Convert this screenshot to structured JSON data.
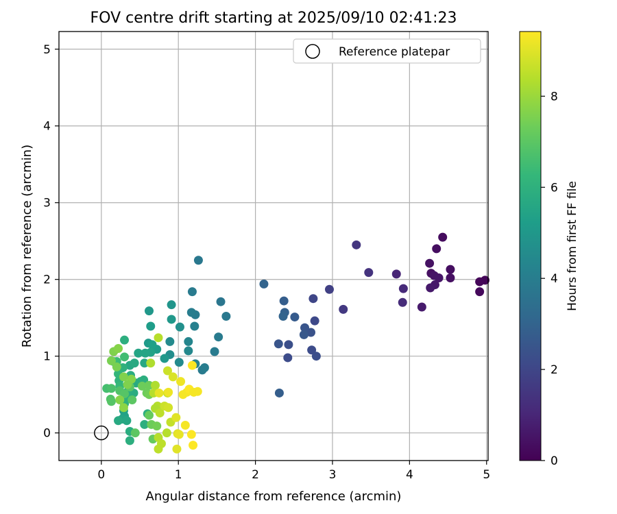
{
  "chart_data": {
    "type": "scatter",
    "title": "FOV centre drift starting at 2025/09/10 02:41:23",
    "xlabel": "Angular distance from reference (arcmin)",
    "ylabel": "Rotation from reference (arcmin)",
    "xlim": [
      -0.55,
      5.02
    ],
    "ylim": [
      -0.36,
      5.23
    ],
    "xticks": [
      0,
      1,
      2,
      3,
      4,
      5
    ],
    "yticks": [
      0,
      1,
      2,
      3,
      4,
      5
    ],
    "grid": true,
    "legend": {
      "placement": "top-right",
      "entries": [
        "Reference platepar"
      ]
    },
    "reference_point": {
      "x": 0,
      "y": 0
    },
    "colorbar": {
      "label": "Hours from first FF file",
      "min": 0,
      "max": 9.42,
      "ticks": [
        0,
        2,
        4,
        6,
        8
      ],
      "colormap": "viridis"
    },
    "points": [
      {
        "x": 4.98,
        "y": 1.99,
        "h": 0.1
      },
      {
        "x": 4.91,
        "y": 1.97,
        "h": 0.15
      },
      {
        "x": 4.91,
        "y": 1.84,
        "h": 0.2
      },
      {
        "x": 4.43,
        "y": 2.55,
        "h": 0.3
      },
      {
        "x": 4.35,
        "y": 2.4,
        "h": 0.35
      },
      {
        "x": 4.26,
        "y": 2.21,
        "h": 0.45
      },
      {
        "x": 4.28,
        "y": 2.08,
        "h": 0.4
      },
      {
        "x": 4.32,
        "y": 2.05,
        "h": 0.5
      },
      {
        "x": 4.38,
        "y": 2.02,
        "h": 0.55
      },
      {
        "x": 4.53,
        "y": 2.13,
        "h": 0.35
      },
      {
        "x": 4.53,
        "y": 2.02,
        "h": 0.4
      },
      {
        "x": 4.33,
        "y": 1.93,
        "h": 0.6
      },
      {
        "x": 4.27,
        "y": 1.89,
        "h": 0.65
      },
      {
        "x": 4.16,
        "y": 1.64,
        "h": 0.7
      },
      {
        "x": 3.92,
        "y": 1.88,
        "h": 1.1
      },
      {
        "x": 3.91,
        "y": 1.7,
        "h": 1.2
      },
      {
        "x": 3.83,
        "y": 2.07,
        "h": 1.0
      },
      {
        "x": 3.47,
        "y": 2.09,
        "h": 1.4
      },
      {
        "x": 3.31,
        "y": 2.45,
        "h": 1.5
      },
      {
        "x": 3.14,
        "y": 1.61,
        "h": 1.6
      },
      {
        "x": 2.96,
        "y": 1.87,
        "h": 1.8
      },
      {
        "x": 2.75,
        "y": 1.75,
        "h": 2.0
      },
      {
        "x": 2.77,
        "y": 1.46,
        "h": 2.1
      },
      {
        "x": 2.73,
        "y": 1.08,
        "h": 2.2
      },
      {
        "x": 2.79,
        "y": 1.0,
        "h": 2.25
      },
      {
        "x": 2.72,
        "y": 1.31,
        "h": 2.4
      },
      {
        "x": 2.64,
        "y": 1.37,
        "h": 2.5
      },
      {
        "x": 2.63,
        "y": 1.28,
        "h": 2.6
      },
      {
        "x": 2.51,
        "y": 1.51,
        "h": 2.7
      },
      {
        "x": 2.43,
        "y": 1.15,
        "h": 2.3
      },
      {
        "x": 2.42,
        "y": 0.98,
        "h": 2.2
      },
      {
        "x": 2.3,
        "y": 1.16,
        "h": 2.5
      },
      {
        "x": 2.37,
        "y": 1.72,
        "h": 2.8
      },
      {
        "x": 2.38,
        "y": 1.57,
        "h": 2.9
      },
      {
        "x": 2.36,
        "y": 1.52,
        "h": 3.0
      },
      {
        "x": 2.31,
        "y": 0.52,
        "h": 2.8
      },
      {
        "x": 2.11,
        "y": 1.94,
        "h": 3.0
      },
      {
        "x": 1.26,
        "y": 2.25,
        "h": 3.8
      },
      {
        "x": 1.18,
        "y": 1.84,
        "h": 3.9
      },
      {
        "x": 1.55,
        "y": 1.71,
        "h": 3.7
      },
      {
        "x": 1.62,
        "y": 1.52,
        "h": 3.8
      },
      {
        "x": 1.22,
        "y": 1.54,
        "h": 3.9
      },
      {
        "x": 1.17,
        "y": 1.57,
        "h": 4.0
      },
      {
        "x": 1.21,
        "y": 1.39,
        "h": 4.1
      },
      {
        "x": 1.52,
        "y": 1.25,
        "h": 3.9
      },
      {
        "x": 1.47,
        "y": 1.06,
        "h": 3.9
      },
      {
        "x": 1.31,
        "y": 0.82,
        "h": 3.9
      },
      {
        "x": 1.34,
        "y": 0.85,
        "h": 4.0
      },
      {
        "x": 1.22,
        "y": 0.9,
        "h": 4.2
      },
      {
        "x": 1.13,
        "y": 1.19,
        "h": 4.3
      },
      {
        "x": 1.13,
        "y": 1.07,
        "h": 4.4
      },
      {
        "x": 1.01,
        "y": 0.92,
        "h": 4.5
      },
      {
        "x": 1.02,
        "y": 1.38,
        "h": 4.7
      },
      {
        "x": 0.91,
        "y": 1.67,
        "h": 4.9
      },
      {
        "x": 0.91,
        "y": 1.48,
        "h": 5.0
      },
      {
        "x": 0.89,
        "y": 1.19,
        "h": 4.5
      },
      {
        "x": 0.89,
        "y": 1.02,
        "h": 4.6
      },
      {
        "x": 0.82,
        "y": 0.97,
        "h": 5.0
      },
      {
        "x": 0.72,
        "y": 1.09,
        "h": 5.2
      },
      {
        "x": 0.64,
        "y": 1.39,
        "h": 5.2
      },
      {
        "x": 0.62,
        "y": 1.59,
        "h": 5.0
      },
      {
        "x": 0.61,
        "y": 1.17,
        "h": 5.1
      },
      {
        "x": 0.66,
        "y": 1.15,
        "h": 5.3
      },
      {
        "x": 0.64,
        "y": 1.05,
        "h": 5.4
      },
      {
        "x": 0.57,
        "y": 1.04,
        "h": 5.5
      },
      {
        "x": 0.56,
        "y": 0.91,
        "h": 5.6
      },
      {
        "x": 0.48,
        "y": 1.04,
        "h": 5.5
      },
      {
        "x": 0.3,
        "y": 1.21,
        "h": 5.9
      },
      {
        "x": 0.37,
        "y": 0.88,
        "h": 5.6
      },
      {
        "x": 0.43,
        "y": 0.91,
        "h": 5.7
      },
      {
        "x": 0.38,
        "y": 0.75,
        "h": 5.8
      },
      {
        "x": 0.45,
        "y": 0.65,
        "h": 5.7
      },
      {
        "x": 0.51,
        "y": 0.67,
        "h": 5.8
      },
      {
        "x": 0.55,
        "y": 0.69,
        "h": 5.9
      },
      {
        "x": 0.42,
        "y": 0.52,
        "h": 5.8
      },
      {
        "x": 0.35,
        "y": 0.55,
        "h": 5.9
      },
      {
        "x": 0.33,
        "y": 0.46,
        "h": 6.0
      },
      {
        "x": 0.3,
        "y": 0.38,
        "h": 6.0
      },
      {
        "x": 0.29,
        "y": 0.29,
        "h": 5.3
      },
      {
        "x": 0.3,
        "y": 0.22,
        "h": 5.4
      },
      {
        "x": 0.27,
        "y": 0.18,
        "h": 5.5
      },
      {
        "x": 0.33,
        "y": 0.16,
        "h": 5.6
      },
      {
        "x": 0.22,
        "y": 0.16,
        "h": 5.7
      },
      {
        "x": 0.37,
        "y": 0.02,
        "h": 5.8
      },
      {
        "x": 0.37,
        "y": -0.1,
        "h": 5.9
      },
      {
        "x": 0.56,
        "y": 0.11,
        "h": 5.9
      },
      {
        "x": 0.6,
        "y": 0.25,
        "h": 5.9
      },
      {
        "x": 0.28,
        "y": 0.85,
        "h": 6.0
      },
      {
        "x": 0.23,
        "y": 0.68,
        "h": 6.1
      },
      {
        "x": 0.22,
        "y": 0.77,
        "h": 6.2
      },
      {
        "x": 0.24,
        "y": 0.61,
        "h": 6.3
      },
      {
        "x": 0.16,
        "y": 0.93,
        "h": 6.3
      },
      {
        "x": 0.2,
        "y": 0.93,
        "h": 6.4
      },
      {
        "x": 0.3,
        "y": 0.99,
        "h": 6.5
      },
      {
        "x": 0.07,
        "y": 0.58,
        "h": 6.6
      },
      {
        "x": 0.13,
        "y": 0.58,
        "h": 6.7
      },
      {
        "x": 0.12,
        "y": 0.44,
        "h": 6.8
      },
      {
        "x": 0.13,
        "y": 0.41,
        "h": 6.9
      },
      {
        "x": 0.24,
        "y": 0.55,
        "h": 6.8
      },
      {
        "x": 0.3,
        "y": 0.51,
        "h": 6.9
      },
      {
        "x": 0.37,
        "y": 0.6,
        "h": 7.0
      },
      {
        "x": 0.4,
        "y": 0.43,
        "h": 7.0
      },
      {
        "x": 0.44,
        "y": 0.0,
        "h": 7.0
      },
      {
        "x": 0.62,
        "y": 0.23,
        "h": 7.2
      },
      {
        "x": 0.65,
        "y": 0.11,
        "h": 7.3
      },
      {
        "x": 0.67,
        "y": -0.08,
        "h": 7.2
      },
      {
        "x": 0.72,
        "y": 0.09,
        "h": 7.4
      },
      {
        "x": 0.53,
        "y": 0.61,
        "h": 7.3
      },
      {
        "x": 0.59,
        "y": 0.52,
        "h": 7.3
      },
      {
        "x": 0.62,
        "y": 0.62,
        "h": 7.3
      },
      {
        "x": 0.62,
        "y": 0.5,
        "h": 7.4
      },
      {
        "x": 0.2,
        "y": 0.86,
        "h": 7.5
      },
      {
        "x": 0.13,
        "y": 0.94,
        "h": 7.5
      },
      {
        "x": 0.16,
        "y": 1.06,
        "h": 7.6
      },
      {
        "x": 0.22,
        "y": 1.1,
        "h": 7.7
      },
      {
        "x": 0.39,
        "y": 0.7,
        "h": 7.7
      },
      {
        "x": 0.29,
        "y": 0.73,
        "h": 7.6
      },
      {
        "x": 0.34,
        "y": 0.63,
        "h": 7.6
      },
      {
        "x": 0.24,
        "y": 0.43,
        "h": 7.7
      },
      {
        "x": 0.29,
        "y": 0.33,
        "h": 7.8
      },
      {
        "x": 0.64,
        "y": 0.91,
        "h": 8.3
      },
      {
        "x": 0.74,
        "y": 1.24,
        "h": 8.4
      },
      {
        "x": 0.7,
        "y": 0.62,
        "h": 8.3
      },
      {
        "x": 0.68,
        "y": 0.52,
        "h": 8.4
      },
      {
        "x": 0.73,
        "y": 0.35,
        "h": 8.4
      },
      {
        "x": 0.7,
        "y": 0.32,
        "h": 8.3
      },
      {
        "x": 0.76,
        "y": 0.26,
        "h": 8.5
      },
      {
        "x": 0.74,
        "y": -0.06,
        "h": 8.4
      },
      {
        "x": 0.74,
        "y": -0.21,
        "h": 8.5
      },
      {
        "x": 0.78,
        "y": -0.14,
        "h": 8.5
      },
      {
        "x": 0.85,
        "y": 0.0,
        "h": 8.4
      },
      {
        "x": 0.86,
        "y": 0.52,
        "h": 8.6
      },
      {
        "x": 0.86,
        "y": 0.81,
        "h": 8.7
      },
      {
        "x": 0.9,
        "y": 0.14,
        "h": 8.6
      },
      {
        "x": 0.82,
        "y": 0.35,
        "h": 8.7
      },
      {
        "x": 0.87,
        "y": 0.33,
        "h": 8.8
      },
      {
        "x": 0.93,
        "y": 0.73,
        "h": 8.9
      },
      {
        "x": 0.97,
        "y": 0.2,
        "h": 9.0
      },
      {
        "x": 0.99,
        "y": -0.01,
        "h": 9.0
      },
      {
        "x": 1.01,
        "y": -0.02,
        "h": 9.1
      },
      {
        "x": 0.98,
        "y": -0.21,
        "h": 9.0
      },
      {
        "x": 0.75,
        "y": 0.52,
        "h": 9.1
      },
      {
        "x": 0.87,
        "y": 0.53,
        "h": 9.2
      },
      {
        "x": 1.03,
        "y": 0.67,
        "h": 9.2
      },
      {
        "x": 1.06,
        "y": 0.5,
        "h": 9.3
      },
      {
        "x": 1.11,
        "y": 0.53,
        "h": 9.3
      },
      {
        "x": 1.14,
        "y": 0.57,
        "h": 9.4
      },
      {
        "x": 1.2,
        "y": 0.53,
        "h": 9.3
      },
      {
        "x": 1.25,
        "y": 0.54,
        "h": 9.3
      },
      {
        "x": 1.18,
        "y": 0.88,
        "h": 9.4
      },
      {
        "x": 1.09,
        "y": 0.1,
        "h": 9.3
      },
      {
        "x": 1.17,
        "y": -0.02,
        "h": 9.4
      },
      {
        "x": 1.19,
        "y": -0.16,
        "h": 9.4
      }
    ]
  }
}
